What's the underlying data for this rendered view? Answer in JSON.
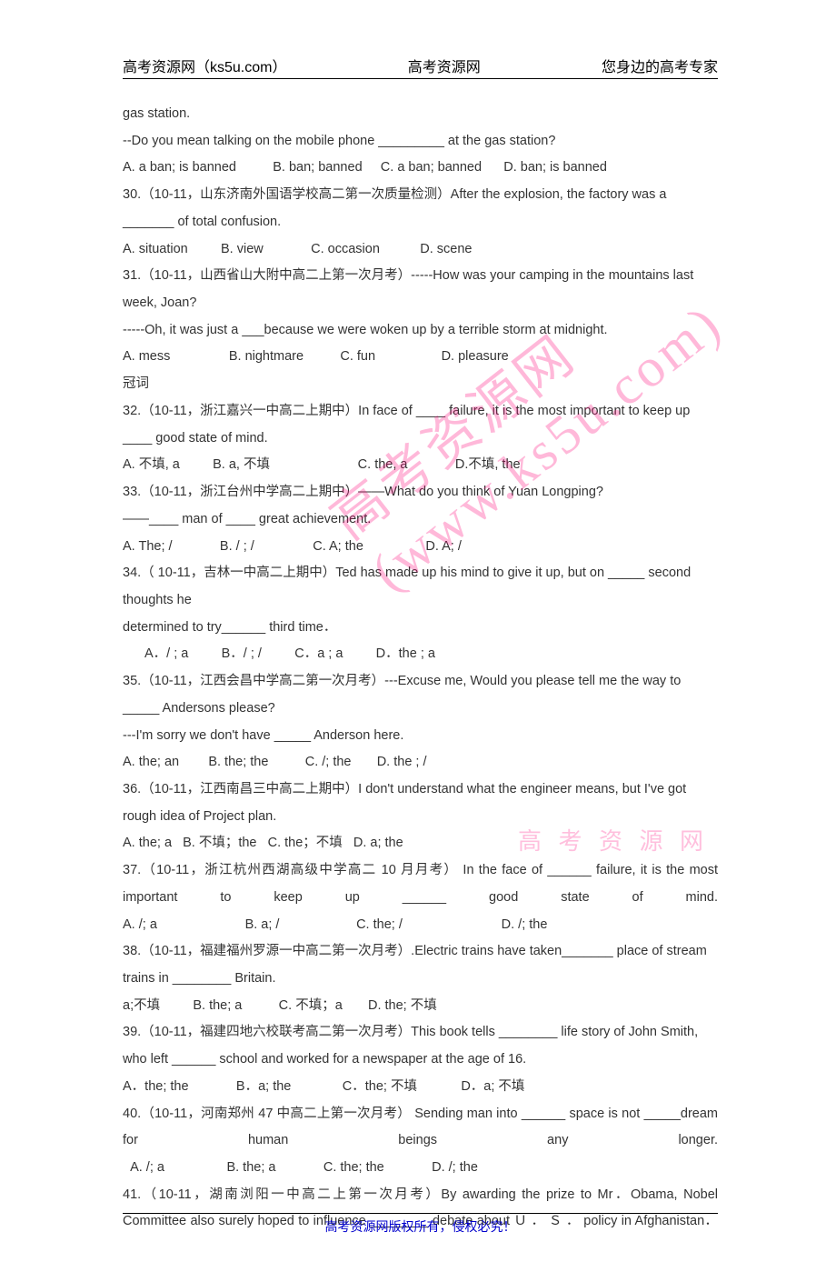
{
  "header": {
    "left": "高考资源网（ks5u.com）",
    "center": "高考资源网",
    "right": "您身边的高考专家"
  },
  "watermarks": {
    "diag": "高考资源网\n(www.ks5u.com)",
    "small": "高 考 资 源 网"
  },
  "footer": "高考资源网版权所有，侵权必究！",
  "q_cont": {
    "l1": "gas station.",
    "l2": "--Do you mean talking on the mobile phone _________ at the gas station?",
    "opts": [
      "A. a ban; is banned",
      "B. ban; banned",
      "C. a ban; banned",
      "D. ban; is banned"
    ]
  },
  "q30": {
    "stem": "30.（10-11，山东济南外国语学校高二第一次质量检测）After the explosion, the factory was a _______ of total confusion.",
    "opts": [
      "A. situation",
      "B. view",
      "C. occasion",
      "D. scene"
    ]
  },
  "q31": {
    "stem1": "31.（10-11，山西省山大附中高二上第一次月考）-----How was your camping in the mountains last week, Joan?",
    "stem2": "-----Oh, it was just a ___because we were woken up by a terrible storm at midnight.",
    "opts": [
      "A. mess",
      "B. nightmare",
      "C. fun",
      "D. pleasure"
    ]
  },
  "section": "冠词",
  "q32": {
    "stem": "32.（10-11，浙江嘉兴一中高二上期中）In face of ____ failure, it is the most important to keep up ____ good state of mind.",
    "opts": [
      "A.  不填, a",
      "B. a,  不填",
      "C. the, a",
      "D.不填,  the"
    ]
  },
  "q33": {
    "stem1": "33.（10-11，浙江台州中学高二上期中）——What do you think of Yuan Longping?",
    "stem2": "——____ man of ____ great achievement.",
    "opts": [
      "A. The; /",
      "B. / ; /",
      "C. A; the",
      "D. A; /"
    ]
  },
  "q34": {
    "stem": "34.（ 10-11，吉林一中高二上期中）Ted  has made up his mind to give it up, but on _____ second thoughts he",
    "stem2": "determined to try______ third time．",
    "opts": [
      "A．/ ; a",
      "B．/ ; /",
      "C．a ; a",
      "D．the ; a"
    ]
  },
  "q35": {
    "stem1": "35.（10-11，江西会昌中学高二第一次月考）---Excuse me, Would you please tell me the way to _____ Andersons please?",
    "stem2": "   ---I'm sorry we don't have _____ Anderson here.",
    "opts": [
      "A. the; an",
      "B. the; the",
      "C. /; the",
      "D. the ; /"
    ]
  },
  "q36": {
    "stem": "36.（10-11，江西南昌三中高二上期中）I don't understand what the engineer means, but I've got       rough idea of         Project plan.",
    "opts": [
      "A. the; a",
      "B. 不填；the",
      "C. the；不填",
      "D. a; the"
    ]
  },
  "q37": {
    "stem": "37.（10-11，浙江杭州西湖高级中学高二 10 月月考）   In the face of ______ failure, it is the most important to keep up ______ good state of mind.",
    "opts": [
      "A. /; a",
      "B. a; /",
      "C. the; /",
      "D. /; the"
    ]
  },
  "q38": {
    "stem": "38.（10-11，福建福州罗源一中高二第一次月考）.Electric trains have taken_______ place of stream trains in ________ Britain.",
    "opts": [
      "a;不填",
      "B. the; a",
      "C. 不填；a",
      "D. the;  不填"
    ]
  },
  "q39": {
    "stem": "39.（10-11，福建四地六校联考高二第一次月考）This book tells ________ life story of John Smith, who left ______ school and worked for a newspaper at the age of 16.",
    "opts": [
      "A．the; the",
      "B．a; the",
      "C．the; 不填",
      "D．a; 不填"
    ]
  },
  "q40": {
    "stem": "40.（10-11，河南郑州 47 中高二上第一次月考）  Sending man into ______ space is not _____dream for human beings any longer.",
    "opts": [
      "A. /; a",
      "B. the; a",
      "C. the; the",
      "D. /; the"
    ]
  },
  "q41": {
    "stem": "41.（10-11，湖南浏阳一中高二上第一次月考）By awarding the prize to Mr．Obama,       Nobel Committee also surely hoped to influence    ________ debate about Ｕ ． Ｓ ． policy in Afghanistan．"
  }
}
